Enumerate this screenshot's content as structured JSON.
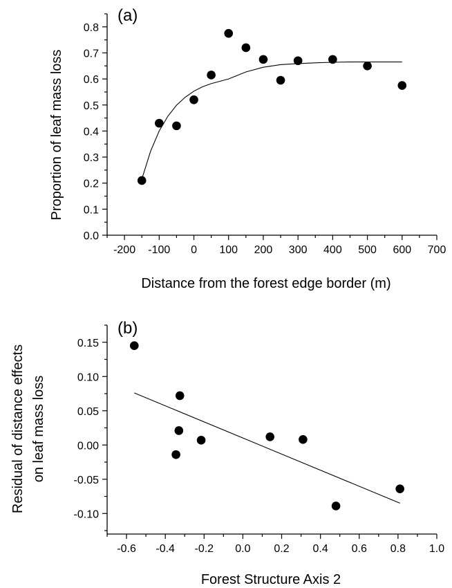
{
  "chart_data": [
    {
      "type": "scatter",
      "panel_label": "(a)",
      "xlabel": "Distance from the forest edge border (m)",
      "ylabel": "Proportion of leaf mass loss",
      "xlim": [
        -250,
        700
      ],
      "ylim": [
        0.0,
        0.85
      ],
      "xticks": [
        -200,
        -100,
        0,
        100,
        200,
        300,
        400,
        500,
        600,
        700
      ],
      "xtick_labels": [
        "-200",
        "-100",
        "0",
        "100",
        "200",
        "300",
        "400",
        "500",
        "600",
        "700"
      ],
      "yticks": [
        0.0,
        0.1,
        0.2,
        0.3,
        0.4,
        0.5,
        0.6,
        0.7,
        0.8
      ],
      "ytick_labels": [
        "0.0",
        "0.1",
        "0.2",
        "0.3",
        "0.4",
        "0.5",
        "0.6",
        "0.7",
        "0.8"
      ],
      "grid": false,
      "points": [
        {
          "x": -150,
          "y": 0.21
        },
        {
          "x": -100,
          "y": 0.43
        },
        {
          "x": -50,
          "y": 0.42
        },
        {
          "x": 0,
          "y": 0.52
        },
        {
          "x": 50,
          "y": 0.615
        },
        {
          "x": 100,
          "y": 0.775
        },
        {
          "x": 150,
          "y": 0.72
        },
        {
          "x": 200,
          "y": 0.675
        },
        {
          "x": 250,
          "y": 0.595
        },
        {
          "x": 300,
          "y": 0.67
        },
        {
          "x": 400,
          "y": 0.675
        },
        {
          "x": 500,
          "y": 0.65
        },
        {
          "x": 600,
          "y": 0.575
        }
      ],
      "fit": {
        "type": "exponential-saturation",
        "x": [
          -150,
          -125,
          -100,
          -75,
          -50,
          -25,
          0,
          25,
          50,
          75,
          100,
          150,
          200,
          250,
          300,
          350,
          400,
          450,
          500,
          550,
          600
        ],
        "y": [
          0.215,
          0.322,
          0.4,
          0.457,
          0.499,
          0.53,
          0.553,
          0.57,
          0.582,
          0.591,
          0.6,
          0.627,
          0.645,
          0.655,
          0.659,
          0.662,
          0.664,
          0.665,
          0.665,
          0.665,
          0.665
        ]
      }
    },
    {
      "type": "scatter",
      "panel_label": "(b)",
      "xlabel": "Forest Structure Axis 2",
      "ylabel": [
        "Residual of distance effects",
        "on leaf mass loss"
      ],
      "xlim": [
        -0.7,
        1.0
      ],
      "ylim": [
        -0.13,
        0.175
      ],
      "xticks": [
        -0.6,
        -0.4,
        -0.2,
        0.0,
        0.2,
        0.4,
        0.6,
        0.8,
        1.0
      ],
      "xtick_labels": [
        "-0.6",
        "-0.4",
        "-0.2",
        "0.0",
        "0.2",
        "0.4",
        "0.6",
        "0.8",
        "1.0"
      ],
      "yticks": [
        -0.1,
        -0.05,
        0.0,
        0.05,
        0.1,
        0.15
      ],
      "ytick_labels": [
        "-0.10",
        "-0.05",
        "0.00",
        "0.05",
        "0.10",
        "0.15"
      ],
      "grid": false,
      "points": [
        {
          "x": -0.56,
          "y": 0.145
        },
        {
          "x": -0.325,
          "y": 0.072
        },
        {
          "x": -0.33,
          "y": 0.021
        },
        {
          "x": -0.345,
          "y": -0.014
        },
        {
          "x": -0.215,
          "y": 0.007
        },
        {
          "x": 0.14,
          "y": 0.012
        },
        {
          "x": 0.31,
          "y": 0.008
        },
        {
          "x": 0.48,
          "y": -0.089
        },
        {
          "x": 0.81,
          "y": -0.064
        }
      ],
      "fit": {
        "type": "linear",
        "x": [
          -0.56,
          0.81
        ],
        "y": [
          0.076,
          -0.085
        ]
      }
    }
  ]
}
